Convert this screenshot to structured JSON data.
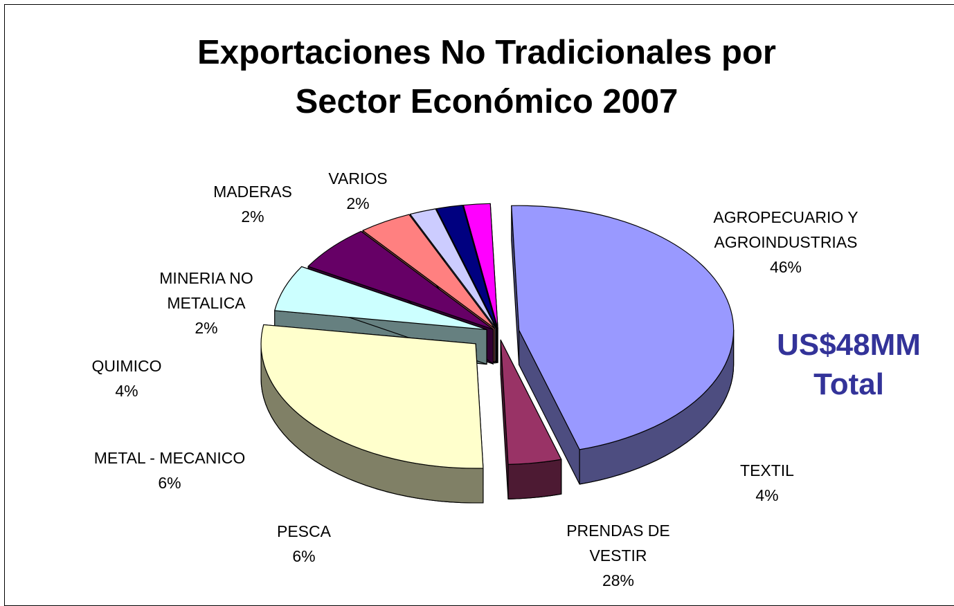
{
  "chart_data": {
    "type": "pie",
    "title": [
      "Exportaciones No Tradicionales por",
      "Sector Económico 2007"
    ],
    "slices": [
      {
        "key": "agro",
        "label": [
          "AGROPECUARIO Y",
          "AGROINDUSTRIAS"
        ],
        "pct": "46%",
        "value": 46,
        "color": "#9999ff",
        "side": "#4d4d80"
      },
      {
        "key": "textil",
        "label": [
          "TEXTIL"
        ],
        "pct": "4%",
        "value": 4,
        "color": "#993366",
        "side": "#4d1a33"
      },
      {
        "key": "prendas",
        "label": [
          "PRENDAS DE",
          "VESTIR"
        ],
        "pct": "28%",
        "value": 28,
        "color": "#ffffcc",
        "side": "#808066"
      },
      {
        "key": "pesca",
        "label": [
          "PESCA"
        ],
        "pct": "6%",
        "value": 6,
        "color": "#ccffff",
        "side": "#668080"
      },
      {
        "key": "metal",
        "label": [
          "METAL - MECANICO"
        ],
        "pct": "6%",
        "value": 6,
        "color": "#660066",
        "side": "#330033"
      },
      {
        "key": "quimico",
        "label": [
          "QUIMICO"
        ],
        "pct": "4%",
        "value": 4,
        "color": "#ff8080",
        "side": "#804040"
      },
      {
        "key": "mineria",
        "label": [
          "MINERIA NO",
          "METALICA"
        ],
        "pct": "2%",
        "value": 2,
        "color": "#ccccff",
        "side": "#666680"
      },
      {
        "key": "varios",
        "label": [
          "VARIOS"
        ],
        "pct": "2%",
        "value": 2,
        "color": "#000080",
        "side": "#000040"
      },
      {
        "key": "maderas",
        "label": [
          "MADERAS"
        ],
        "pct": "2%",
        "value": 2,
        "color": "#ff00ff",
        "side": "#800080"
      }
    ],
    "total_label": [
      "US$48MM",
      "Total"
    ],
    "legend": "none"
  }
}
